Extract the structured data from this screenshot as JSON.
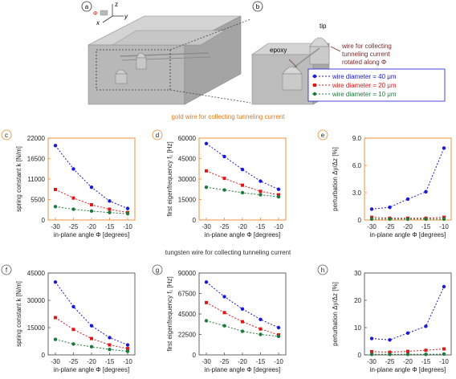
{
  "panel_letters": {
    "a": "a",
    "b": "b",
    "c": "c",
    "d": "d",
    "e": "e",
    "f": "f",
    "g": "g",
    "h": "h"
  },
  "device_labels": {
    "z": "z",
    "x": "x",
    "y": "y",
    "phi": "Φ",
    "tip": "tip",
    "epoxy": "epoxy",
    "wire_note_1": "wire for collecting",
    "wire_note_2": "tunneling current",
    "wire_note_3": "rotated along Φ"
  },
  "legend": {
    "items": [
      "wire diameter = 40 μm",
      "wire diameter = 20 μm",
      "wire diameter = 10 μm"
    ]
  },
  "row_titles": {
    "gold": "gold wire for collecting tunneling current",
    "tungsten": "tungsten wire for collecting tunneling current"
  },
  "colors": {
    "series_40": "#1a1ad6",
    "series_20": "#e01818",
    "series_10": "#1e7a3c",
    "gold_frame": "#f0862a",
    "tungsten_frame": "#555555",
    "device": "#b8b8b8"
  },
  "chart_data": [
    {
      "id": "c",
      "type": "line",
      "title": "gold wire for collecting tunneling current",
      "xlabel": "in-plane angle Φ [degrees]",
      "ylabel": "spring constant k [N/m]",
      "x": [
        -30,
        -25,
        -20,
        -15,
        -10
      ],
      "xlim": [
        -32,
        -8
      ],
      "ylim": [
        0,
        22000
      ],
      "yticks": [
        0,
        5500,
        11000,
        16500,
        22000
      ],
      "yticklabels": [
        "0",
        "5500",
        "11000",
        "16500",
        "22000"
      ],
      "xticklabels": [
        "-30",
        "-25",
        "-20",
        "-15",
        "-10"
      ],
      "series": [
        {
          "name": "wire diameter = 40 μm",
          "values": [
            20000,
            13700,
            8800,
            5100,
            3100
          ]
        },
        {
          "name": "wire diameter = 20 μm",
          "values": [
            8200,
            5900,
            4100,
            2900,
            2000
          ]
        },
        {
          "name": "wire diameter = 10 μm",
          "values": [
            3600,
            2900,
            2400,
            2000,
            1700
          ]
        }
      ]
    },
    {
      "id": "d",
      "type": "line",
      "title": "gold wire for collecting tunneling current",
      "xlabel": "in-plane angle Φ [degrees]",
      "ylabel": "first eigenfrequency f₁ [Hz]",
      "x": [
        -30,
        -25,
        -20,
        -15,
        -10
      ],
      "xlim": [
        -32,
        -8
      ],
      "ylim": [
        0,
        60000
      ],
      "yticks": [
        0,
        15000,
        30000,
        45000,
        60000
      ],
      "yticklabels": [
        "0",
        "15000",
        "30000",
        "45000",
        "60000"
      ],
      "xticklabels": [
        "-30",
        "-25",
        "-20",
        "-15",
        "-10"
      ],
      "series": [
        {
          "name": "wire diameter = 40 μm",
          "values": [
            56000,
            46500,
            37000,
            28500,
            22500
          ]
        },
        {
          "name": "wire diameter = 20 μm",
          "values": [
            36000,
            30500,
            25500,
            21000,
            18500
          ]
        },
        {
          "name": "wire diameter = 10 μm",
          "values": [
            24000,
            22000,
            20000,
            18500,
            17000
          ]
        }
      ]
    },
    {
      "id": "e",
      "type": "line",
      "title": "gold wire for collecting tunneling current",
      "xlabel": "in-plane angle Φ [degrees]",
      "ylabel": "perturbation Δy/Δz [%]",
      "x": [
        -30,
        -25,
        -20,
        -15,
        -10
      ],
      "xlim": [
        -32,
        -8
      ],
      "ylim": [
        0,
        9.0
      ],
      "yticks": [
        0,
        3.0,
        6.0,
        9.0
      ],
      "yticklabels": [
        "0",
        "3.0",
        "6.0",
        "9.0"
      ],
      "xticklabels": [
        "-30",
        "-25",
        "-20",
        "-15",
        "-10"
      ],
      "series": [
        {
          "name": "wire diameter = 40 μm",
          "values": [
            1.2,
            1.4,
            2.3,
            3.1,
            7.9
          ]
        },
        {
          "name": "wire diameter = 20 μm",
          "values": [
            0.3,
            0.2,
            0.2,
            0.2,
            0.3
          ]
        },
        {
          "name": "wire diameter = 10 μm",
          "values": [
            0.1,
            0.1,
            0.1,
            0.1,
            0.1
          ]
        }
      ]
    },
    {
      "id": "f",
      "type": "line",
      "title": "tungsten wire for collecting tunneling current",
      "xlabel": "in-plane angle Φ [degrees]",
      "ylabel": "spring constant k [N/m]",
      "x": [
        -30,
        -25,
        -20,
        -15,
        -10
      ],
      "xlim": [
        -32,
        -8
      ],
      "ylim": [
        0,
        45000
      ],
      "yticks": [
        0,
        15000,
        30000,
        45000
      ],
      "yticklabels": [
        "0",
        "15000",
        "30000",
        "45000"
      ],
      "xticklabels": [
        "-30",
        "-25",
        "-20",
        "-15",
        "-10"
      ],
      "series": [
        {
          "name": "wire diameter = 40 μm",
          "values": [
            40000,
            26500,
            16000,
            9500,
            5500
          ]
        },
        {
          "name": "wire diameter = 20 μm",
          "values": [
            20500,
            14000,
            9000,
            5500,
            3500
          ]
        },
        {
          "name": "wire diameter = 10 μm",
          "values": [
            8500,
            6000,
            4500,
            3000,
            2000
          ]
        }
      ]
    },
    {
      "id": "g",
      "type": "line",
      "title": "tungsten wire for collecting tunneling current",
      "xlabel": "in-plane angle Φ [degrees]",
      "ylabel": "first eigenfrequency f₁ [Hz]",
      "x": [
        -30,
        -25,
        -20,
        -15,
        -10
      ],
      "xlim": [
        -32,
        -8
      ],
      "ylim": [
        0,
        90000
      ],
      "yticks": [
        0,
        22500,
        45000,
        67500,
        90000
      ],
      "yticklabels": [
        "0",
        "22500",
        "45000",
        "67500",
        "90000"
      ],
      "xticklabels": [
        "-30",
        "-25",
        "-20",
        "-15",
        "-10"
      ],
      "series": [
        {
          "name": "wire diameter = 40 μm",
          "values": [
            80000,
            64000,
            50500,
            39000,
            30000
          ]
        },
        {
          "name": "wire diameter = 20 μm",
          "values": [
            57500,
            46500,
            36500,
            28500,
            22000
          ]
        },
        {
          "name": "wire diameter = 10 μm",
          "values": [
            37500,
            32000,
            26000,
            22500,
            20500
          ]
        }
      ]
    },
    {
      "id": "h",
      "type": "line",
      "title": "tungsten wire for collecting tunneling current",
      "xlabel": "in-plane angle Φ [degrees]",
      "ylabel": "perturbation Δy/Δz [%]",
      "x": [
        -30,
        -25,
        -20,
        -15,
        -10
      ],
      "xlim": [
        -32,
        -8
      ],
      "ylim": [
        0,
        30
      ],
      "yticks": [
        0,
        10,
        20,
        30
      ],
      "yticklabels": [
        "0",
        "10",
        "20",
        "30"
      ],
      "xticklabels": [
        "-30",
        "-25",
        "-20",
        "-15",
        "-10"
      ],
      "series": [
        {
          "name": "wire diameter = 40 μm",
          "values": [
            6.0,
            5.5,
            8.0,
            10.5,
            25.0
          ]
        },
        {
          "name": "wire diameter = 20 μm",
          "values": [
            1.2,
            1.0,
            1.3,
            1.7,
            2.2
          ]
        },
        {
          "name": "wire diameter = 10 μm",
          "values": [
            0.2,
            0.2,
            0.2,
            0.2,
            0.3
          ]
        }
      ]
    }
  ]
}
